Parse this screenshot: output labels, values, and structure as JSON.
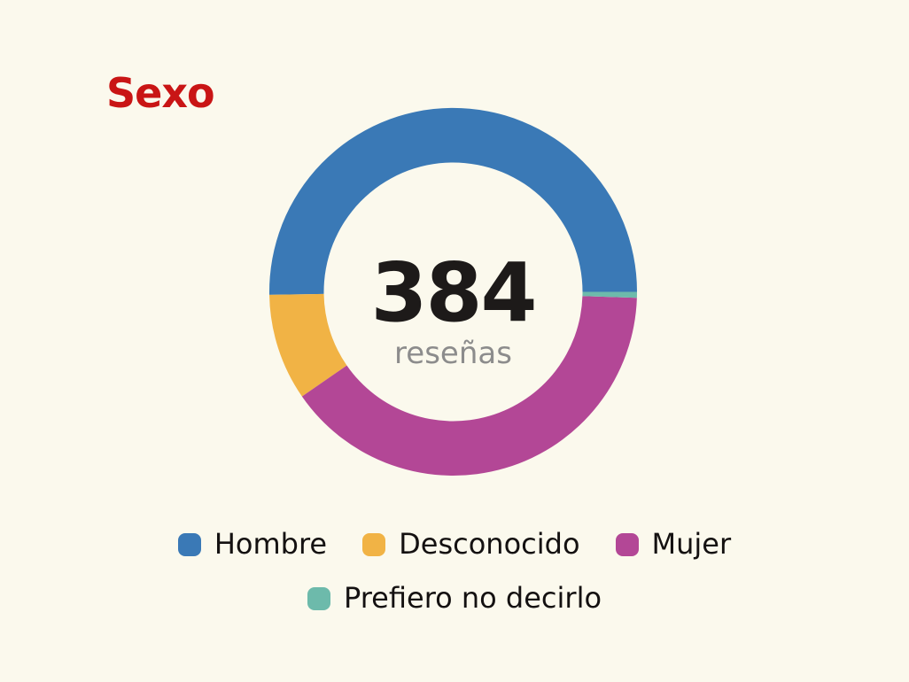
{
  "page": {
    "background": "#fbf9ed"
  },
  "title": {
    "text": "Sexo",
    "color": "#c91515"
  },
  "center": {
    "value": "384",
    "label": "reseñas",
    "value_color": "#1d1a19",
    "label_color": "#8c8c8c"
  },
  "legend": {
    "text_color": "#141111",
    "items": [
      {
        "label": "Hombre",
        "color": "#3a79b6"
      },
      {
        "label": "Desconocido",
        "color": "#f1b345"
      },
      {
        "label": "Mujer",
        "color": "#b34796"
      },
      {
        "label": "Prefiero no decirlo",
        "color": "#6dbaab"
      }
    ]
  },
  "chart_data": {
    "type": "pie",
    "title": "Sexo",
    "subtype": "donut",
    "total": 384,
    "total_label": "384 reseñas",
    "start_angle_deg": 0,
    "direction": "counterclockwise",
    "legend_position": "bottom",
    "categories": [
      "Hombre",
      "Desconocido",
      "Mujer",
      "Prefiero no decirlo"
    ],
    "values": [
      193,
      36,
      153,
      2
    ],
    "percentages": [
      50.3,
      9.4,
      39.8,
      0.5
    ],
    "colors": [
      "#3a79b6",
      "#f1b345",
      "#b34796",
      "#6dbaab"
    ]
  }
}
